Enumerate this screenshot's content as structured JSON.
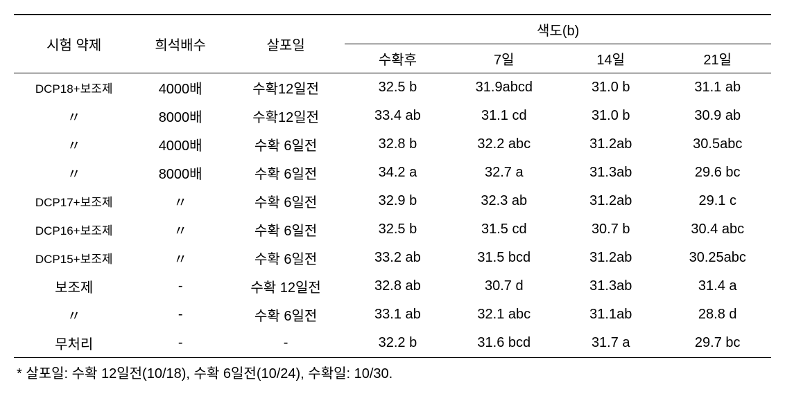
{
  "header": {
    "agent": "시험 약제",
    "dilution": "희석배수",
    "spray": "살포일",
    "group": "색도(b)",
    "sub": [
      "수확후",
      "7일",
      "14일",
      "21일"
    ]
  },
  "rows": [
    {
      "agent": "DCP18+보조제",
      "agent_small": true,
      "dilution": "4000배",
      "spray": "수확12일전",
      "v": [
        "32.5 b",
        "31.9abcd",
        "31.0 b",
        "31.1 ab"
      ]
    },
    {
      "agent": "〃",
      "agent_small": false,
      "dilution": "8000배",
      "spray": "수확12일전",
      "v": [
        "33.4 ab",
        "31.1 cd",
        "31.0 b",
        "30.9 ab"
      ]
    },
    {
      "agent": "〃",
      "agent_small": false,
      "dilution": "4000배",
      "spray": "수확 6일전",
      "v": [
        "32.8 b",
        "32.2 abc",
        "31.2ab",
        "30.5abc"
      ]
    },
    {
      "agent": "〃",
      "agent_small": false,
      "dilution": "8000배",
      "spray": "수확 6일전",
      "v": [
        "34.2 a",
        "32.7 a",
        "31.3ab",
        "29.6 bc"
      ]
    },
    {
      "agent": "DCP17+보조제",
      "agent_small": true,
      "dilution": "〃",
      "spray": "수확 6일전",
      "v": [
        "32.9 b",
        "32.3 ab",
        "31.2ab",
        "29.1 c"
      ]
    },
    {
      "agent": "DCP16+보조제",
      "agent_small": true,
      "dilution": "〃",
      "spray": "수확 6일전",
      "v": [
        "32.5 b",
        "31.5 cd",
        "30.7 b",
        "30.4 abc"
      ]
    },
    {
      "agent": "DCP15+보조제",
      "agent_small": true,
      "dilution": "〃",
      "spray": "수확 6일전",
      "v": [
        "33.2 ab",
        "31.5 bcd",
        "31.2ab",
        "30.25abc"
      ]
    },
    {
      "agent": "보조제",
      "agent_small": false,
      "dilution": "-",
      "spray": "수확 12일전",
      "v": [
        "32.8 ab",
        "30.7 d",
        "31.3ab",
        "31.4 a"
      ]
    },
    {
      "agent": "〃",
      "agent_small": false,
      "dilution": "-",
      "spray": "수확 6일전",
      "v": [
        "33.1 ab",
        "32.1 abc",
        "31.1ab",
        "28.8 d"
      ]
    },
    {
      "agent": "무처리",
      "agent_small": false,
      "dilution": "-",
      "spray": "-",
      "v": [
        "32.2 b",
        "31.6 bcd",
        "31.7 a",
        "29.7 bc"
      ]
    }
  ],
  "footnote": "* 살포일: 수확 12일전(10/18), 수확 6일전(10/24), 수확일: 10/30."
}
